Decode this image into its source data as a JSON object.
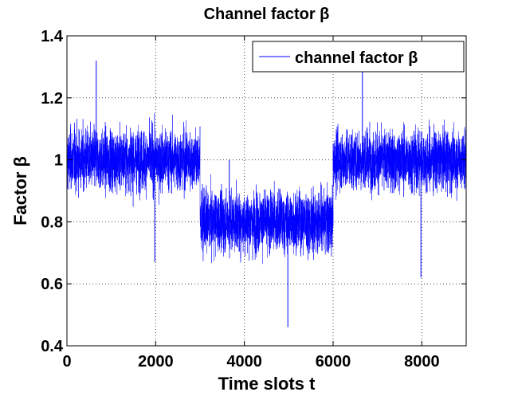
{
  "chart_data": {
    "type": "line",
    "title": "Channel factor β",
    "xlabel": "Time slots t",
    "ylabel": "Factor β",
    "xlim": [
      0,
      9000
    ],
    "ylim": [
      0.4,
      1.4
    ],
    "xticks": [
      0,
      2000,
      4000,
      6000,
      8000
    ],
    "xtick_labels": [
      "0",
      "2000",
      "4000",
      "6000",
      "8000"
    ],
    "yticks": [
      0.4,
      0.6,
      0.8,
      1.0,
      1.2,
      1.4
    ],
    "ytick_labels": [
      "0.4",
      "0.6",
      "0.8",
      "1",
      "1.2",
      "1.4"
    ],
    "grid": true,
    "legend_position": "top-right",
    "series": [
      {
        "name": "channel factor β",
        "color": "#0000ff",
        "x": [
          0,
          3000,
          3000,
          6000,
          6000,
          9000
        ],
        "y": [
          1.0,
          1.0,
          0.8,
          0.8,
          1.0,
          1.0
        ],
        "segments": [
          {
            "x_start": 0,
            "x_end": 3000,
            "mean": 1.0,
            "dense_band": [
              0.88,
              1.12
            ],
            "max": 1.32,
            "min": 0.67
          },
          {
            "x_start": 3000,
            "x_end": 6000,
            "mean": 0.8,
            "dense_band": [
              0.68,
              0.92
            ],
            "max": 1.0,
            "min": 0.46
          },
          {
            "x_start": 6000,
            "x_end": 9000,
            "mean": 1.0,
            "dense_band": [
              0.88,
              1.12
            ],
            "max": 1.3,
            "min": 0.62
          }
        ]
      }
    ]
  }
}
